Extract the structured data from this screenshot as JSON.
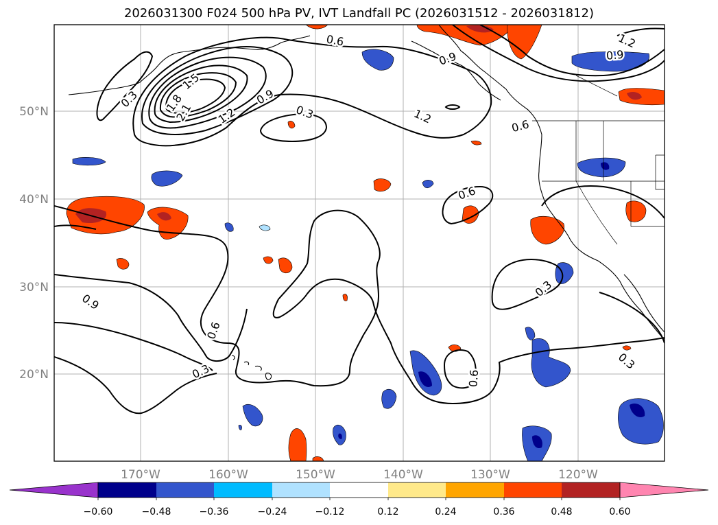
{
  "title": "2026031300 F024 500 hPa PV, IVT Landfall PC (2026031512 - 2026031812)",
  "map": {
    "lat_labels": [
      "50°N",
      "40°N",
      "30°N",
      "20°N"
    ],
    "lon_labels": [
      "170°W",
      "160°W",
      "150°W",
      "140°W",
      "130°W",
      "120°W"
    ]
  },
  "contour_labels": [
    "0.3",
    "1.5",
    "1.8",
    "2.1",
    "1.2",
    "0.9",
    "0.3",
    "0.6",
    "0.9",
    "1.2",
    "0.6",
    "1.2",
    "0.9",
    "0.6",
    "0.3",
    "0.9",
    "0.6",
    "0.3",
    "0.6",
    "0.3"
  ],
  "colorbar": {
    "ticks": [
      "−0.60",
      "−0.48",
      "−0.36",
      "−0.24",
      "−0.12",
      "0.12",
      "0.24",
      "0.36",
      "0.48",
      "0.60"
    ],
    "colors": [
      "#9933cc",
      "#00008b",
      "#3355cc",
      "#00bbff",
      "#b0e2ff",
      "#ffffff",
      "#ffe98a",
      "#ffa500",
      "#ff4500",
      "#b22222",
      "#ff85b0"
    ]
  }
}
